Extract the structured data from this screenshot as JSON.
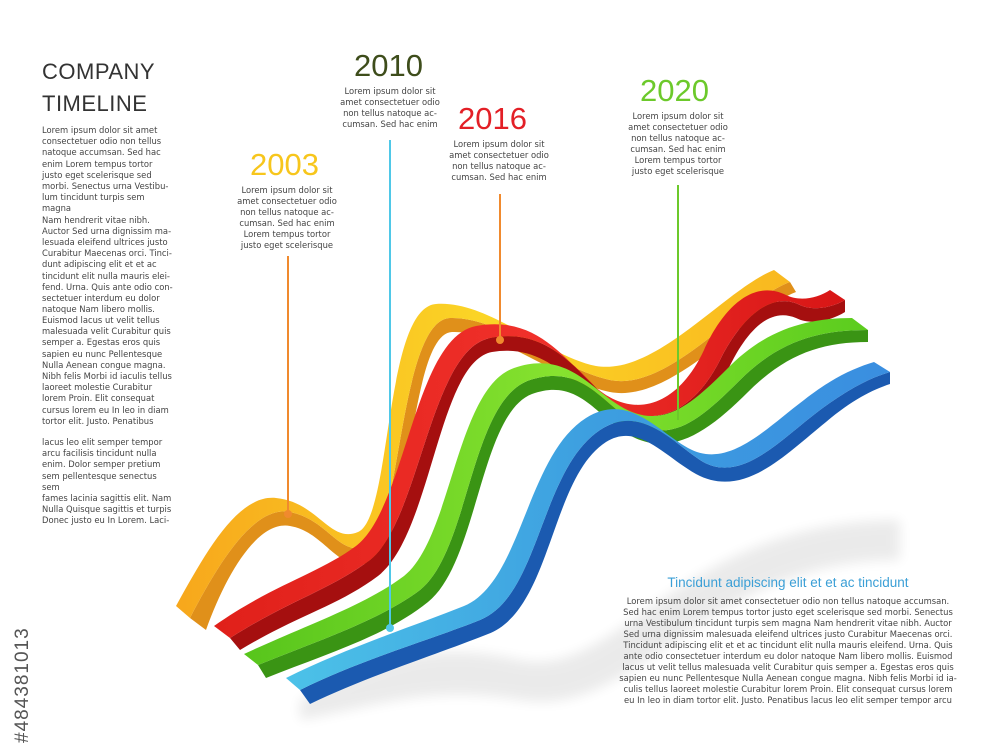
{
  "header": {
    "title_line1": "COMPANY",
    "title_line2": "TIMELINE"
  },
  "sidebar": {
    "paragraph1": "Lorem ipsum dolor sit amet\nconsectetuer odio non tellus\nnatoque accumsan. Sed hac\nenim Lorem tempus tortor\njusto eget scelerisque sed\nmorbi. Senectus urna Vestibu-\nlum tincidunt turpis sem magna\nNam hendrerit vitae nibh.\nAuctor Sed urna dignissim ma-\nlesuada eleifend ultrices justo\nCurabitur Maecenas orci. Tinci-\ndunt adipiscing elit et et ac\ntincidunt elit nulla mauris elei-\nfend. Urna. Quis ante odio con-\nsectetuer interdum eu dolor\nnatoque Nam libero mollis.",
    "paragraph2": "Euismod lacus ut velit tellus\nmalesuada velit Curabitur quis\nsemper a. Egestas eros quis\nsapien eu nunc Pellentesque\nNulla Aenean congue magna.\nNibh felis Morbi id iaculis tellus\nlaoreet molestie Curabitur\nlorem Proin. Elit consequat\ncursus lorem eu In leo in diam\ntortor elit. Justo. Penatibus",
    "paragraph3": " lacus leo elit semper tempor\narcu facilisis tincidunt nulla\nenim. Dolor semper pretium\nsem pellentesque senectus sem\nfames lacinia sagittis elit. Nam\nNulla Quisque sagittis et turpis\nDonec justo eu In Lorem. Laci-"
  },
  "milestones": [
    {
      "year": "2003",
      "color": "#f7c61c",
      "pin_color": "#f08a2e",
      "text": "Lorem ipsum dolor sit\namet consectetuer odio\nnon tellus natoque ac-\ncumsan. Sed hac enim\nLorem tempus tortor\njusto eget scelerisque"
    },
    {
      "year": "2010",
      "color": "#3e4d1b",
      "pin_color": "#4fc8e8",
      "text": "Lorem ipsum dolor sit\namet consectetuer odio\nnon tellus natoque ac-\ncumsan. Sed hac enim"
    },
    {
      "year": "2016",
      "color": "#e31f26",
      "pin_color": "#f08a2e",
      "text": "Lorem ipsum dolor sit\namet consectetuer odio\nnon tellus natoque ac-\ncumsan. Sed hac enim"
    },
    {
      "year": "2020",
      "color": "#6cc92b",
      "pin_color": "#6cc92b",
      "text": "Lorem ipsum dolor sit\namet consectetuer odio\nnon tellus natoque ac-\ncumsan. Sed hac enim\nLorem tempus tortor\njusto eget scelerisque"
    }
  ],
  "callout": {
    "heading": "Tincidunt adipiscing elit et et ac tincidunt",
    "body": "Lorem ipsum dolor sit amet consectetuer odio non tellus natoque accumsan.\nSed hac enim Lorem tempus tortor justo eget scelerisque sed morbi. Senectus\nurna Vestibulum tincidunt turpis sem magna Nam hendrerit vitae nibh. Auctor\nSed urna dignissim malesuada eleifend ultrices justo Curabitur Maecenas orci.\nTincidunt adipiscing elit et et ac tincidunt elit nulla mauris eleifend. Urna. Quis\nante odio consectetuer interdum eu dolor natoque Nam libero mollis. Euismod\nlacus ut velit tellus malesuada velit Curabitur quis semper a. Egestas eros quis\nsapien eu nunc Pellentesque Nulla Aenean congue magna. Nibh felis Morbi id ia-\nculis tellus laoreet molestie Curabitur lorem Proin. Elit consequat cursus lorem\neu In leo in diam tortor elit. Justo. Penatibus lacus leo elit semper tempor arcu"
  },
  "ribbons": [
    {
      "color": "yellow",
      "fill": "#f6c21b",
      "side": "#e79a12"
    },
    {
      "color": "red",
      "fill": "#e4231e",
      "side": "#a80f0f"
    },
    {
      "color": "green",
      "fill": "#63cf22",
      "side": "#3e9a14"
    },
    {
      "color": "blue",
      "fill": "#3aa9e0",
      "side": "#1b5fb5"
    }
  ],
  "stock_id": "#484381013"
}
